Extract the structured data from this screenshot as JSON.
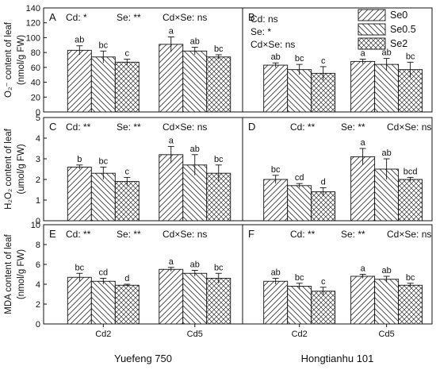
{
  "chart_data": {
    "type": "bar",
    "legend": {
      "placement": "top-right",
      "entries": [
        "Se0",
        "Se0.5",
        "Se2"
      ]
    },
    "series_patterns": [
      "diagonal-up",
      "diagonal-down",
      "crosshatch"
    ],
    "cultivars": [
      "Yuefeng 750",
      "Hongtianhu 101"
    ],
    "categories": [
      "Cd2",
      "Cd5"
    ],
    "rows": [
      {
        "ylabel": "O₂⁻ content of leaf",
        "yunit": "(nmol/g FW)",
        "ylim": [
          0,
          140
        ],
        "yticks": [
          "0",
          "20",
          "40",
          "60",
          "80",
          "100",
          "120",
          "140"
        ],
        "panels": [
          {
            "label": "A",
            "significance": [
              "Cd: *",
              "Se: **",
              "Cd×Se: ns"
            ],
            "values": [
              [
                83,
                74,
                67
              ],
              [
                91,
                82,
                74
              ]
            ],
            "errors": [
              [
                6,
                8,
                4
              ],
              [
                10,
                5,
                3
              ]
            ],
            "letters": [
              [
                "ab",
                "bc",
                "c"
              ],
              [
                "a",
                "ab",
                "bc"
              ]
            ]
          },
          {
            "label": "B",
            "significance": [
              "Cd: ns",
              "Se: *",
              "Cd×Se: ns"
            ],
            "values": [
              [
                63,
                57,
                52
              ],
              [
                68,
                64,
                57
              ]
            ],
            "errors": [
              [
                3,
                7,
                9
              ],
              [
                3,
                8,
                10
              ]
            ],
            "letters": [
              [
                "ab",
                "bc",
                "c"
              ],
              [
                "a",
                "ab",
                "bc"
              ]
            ]
          }
        ]
      },
      {
        "ylabel": "H₂O₂ content of leaf",
        "yunit": "(umol/g FW)",
        "ylim": [
          0,
          5
        ],
        "yticks": [
          "0",
          "1",
          "2",
          "3",
          "4",
          "5"
        ],
        "panels": [
          {
            "label": "C",
            "significance": [
              "Cd: **",
              "Se: **",
              "Cd×Se: ns"
            ],
            "values": [
              [
                2.6,
                2.3,
                1.9
              ],
              [
                3.2,
                2.7,
                2.3
              ]
            ],
            "errors": [
              [
                0.1,
                0.3,
                0.2
              ],
              [
                0.4,
                0.5,
                0.4
              ]
            ],
            "letters": [
              [
                "b",
                "bc",
                "c"
              ],
              [
                "a",
                "ab",
                "bc"
              ]
            ]
          },
          {
            "label": "D",
            "significance": [
              "Cd: **",
              "Se: **",
              "Cd×Se: ns"
            ],
            "values": [
              [
                2.0,
                1.7,
                1.4
              ],
              [
                3.1,
                2.5,
                2.0
              ]
            ],
            "errors": [
              [
                0.2,
                0.1,
                0.2
              ],
              [
                0.4,
                0.5,
                0.1
              ]
            ],
            "letters": [
              [
                "bc",
                "cd",
                "d"
              ],
              [
                "a",
                "ab",
                "bcd"
              ]
            ]
          }
        ]
      },
      {
        "ylabel": "MDA content of leaf",
        "yunit": "(nmol/g FW)",
        "ylim": [
          0,
          10
        ],
        "yticks": [
          "0",
          "2",
          "4",
          "6",
          "8",
          "10"
        ],
        "panels": [
          {
            "label": "E",
            "significance": [
              "Cd: **",
              "Se: **",
              "Cd×Se: ns"
            ],
            "values": [
              [
                4.7,
                4.3,
                3.9
              ],
              [
                5.5,
                5.1,
                4.6
              ]
            ],
            "errors": [
              [
                0.4,
                0.3,
                0.1
              ],
              [
                0.2,
                0.3,
                0.5
              ]
            ],
            "letters": [
              [
                "bc",
                "cd",
                "d"
              ],
              [
                "a",
                "ab",
                "bc"
              ]
            ]
          },
          {
            "label": "F",
            "significance": [
              "Cd: **",
              "Se: **",
              "Cd×Se: ns"
            ],
            "values": [
              [
                4.3,
                3.8,
                3.3
              ],
              [
                4.8,
                4.5,
                3.9
              ]
            ],
            "errors": [
              [
                0.3,
                0.3,
                0.4
              ],
              [
                0.2,
                0.3,
                0.2
              ]
            ],
            "letters": [
              [
                "ab",
                "bc",
                "c"
              ],
              [
                "a",
                "ab",
                "bc"
              ]
            ]
          }
        ]
      }
    ]
  }
}
